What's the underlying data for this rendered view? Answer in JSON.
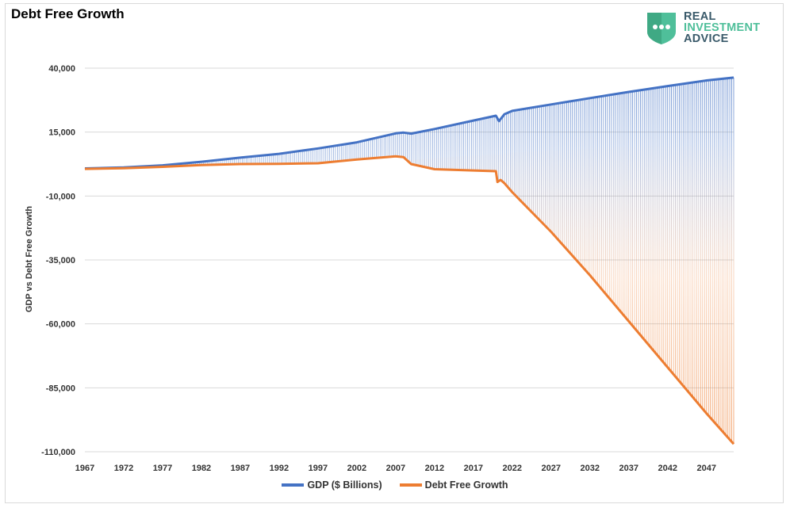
{
  "title": "Debt Free Growth",
  "logo": {
    "lines": [
      "REAL",
      "INVESTMENT",
      "ADVICE"
    ],
    "badge_icon": "three-dots-shield-icon",
    "colors": {
      "primary": "#3a5a6a",
      "accent": "#4fbf9a"
    }
  },
  "chart_data": {
    "type": "line",
    "title": "Debt Free Growth",
    "xlabel": "",
    "ylabel": "GDP vs Debt Free Growth",
    "ylim": [
      -110000,
      40000
    ],
    "xlim": [
      1967,
      2050.5
    ],
    "y_ticks": [
      40000,
      15000,
      -10000,
      -35000,
      -60000,
      -85000,
      -110000
    ],
    "y_tick_labels": [
      "40,000",
      "15,000",
      "-10,000",
      "-35,000",
      "-60,000",
      "-85,000",
      "-110,000"
    ],
    "x_ticks": [
      1967,
      1972,
      1977,
      1982,
      1987,
      1992,
      1997,
      2002,
      2007,
      2012,
      2017,
      2022,
      2027,
      2032,
      2037,
      2042,
      2047
    ],
    "x_tick_labels": [
      "1967",
      "1972",
      "1977",
      "1982",
      "1987",
      "1992",
      "1997",
      "2002",
      "2007",
      "2012",
      "2017",
      "2022",
      "2027",
      "2032",
      "2037",
      "2042",
      "2047"
    ],
    "grid": true,
    "legend_position": "bottom",
    "series": [
      {
        "name": "GDP ($ Billions)",
        "color": "#4472c4",
        "x": [
          1967,
          1972,
          1977,
          1982,
          1987,
          1992,
          1997,
          2002,
          2007,
          2008,
          2009,
          2012,
          2017,
          2019.9,
          2020.3,
          2021,
          2022,
          2027,
          2032,
          2037,
          2042,
          2047,
          2050.5
        ],
        "y": [
          800,
          1200,
          2000,
          3400,
          5000,
          6500,
          8600,
          11000,
          14500,
          14800,
          14400,
          16200,
          19500,
          21400,
          19300,
          22000,
          23300,
          25800,
          28300,
          30700,
          33000,
          35200,
          36300
        ]
      },
      {
        "name": "Debt Free Growth",
        "color": "#ed7d31",
        "x": [
          1967,
          1972,
          1977,
          1982,
          1987,
          1992,
          1997,
          2002,
          2007,
          2008,
          2009,
          2012,
          2017,
          2019.9,
          2020.1,
          2020.5,
          2021,
          2022,
          2027,
          2032,
          2037,
          2042,
          2047,
          2050.5
        ],
        "y": [
          600,
          900,
          1400,
          2100,
          2500,
          2600,
          2800,
          4300,
          5500,
          5200,
          2500,
          500,
          0,
          -300,
          -4500,
          -3700,
          -5000,
          -8500,
          -24000,
          -41000,
          -59000,
          -77000,
          -95000,
          -107000
        ]
      }
    ]
  }
}
